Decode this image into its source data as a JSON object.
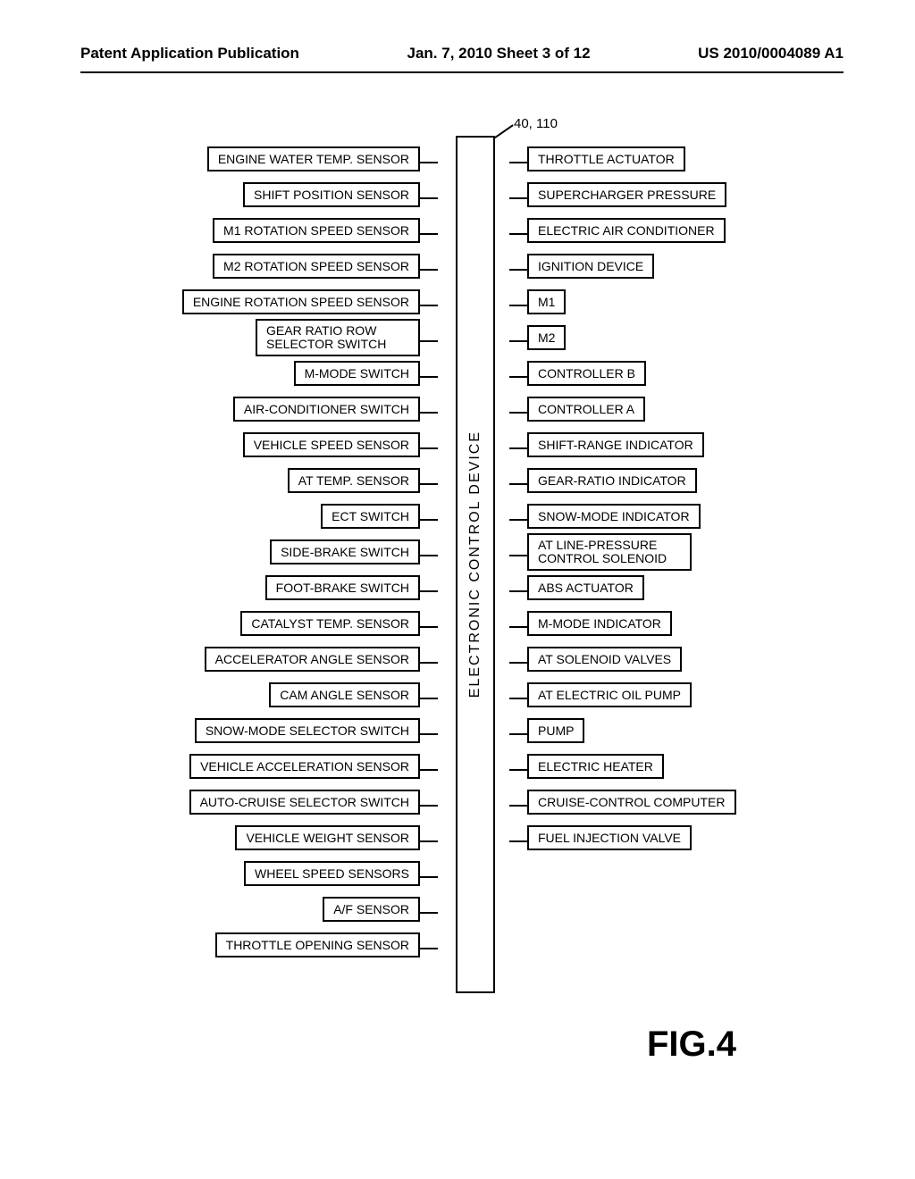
{
  "header": {
    "left": "Patent Application Publication",
    "center": "Jan. 7, 2010  Sheet 3 of 12",
    "right": "US 2010/0004089 A1"
  },
  "diagram": {
    "central_label": "ELECTRONIC CONTROL DEVICE",
    "ref_numbers": "40, 110",
    "figure_label": "FIG.4",
    "inputs": [
      {
        "label": "ENGINE WATER TEMP. SENSOR"
      },
      {
        "label": "SHIFT POSITION SENSOR"
      },
      {
        "label": "M1 ROTATION SPEED SENSOR"
      },
      {
        "label": "M2 ROTATION SPEED SENSOR"
      },
      {
        "label": "ENGINE ROTATION SPEED SENSOR"
      },
      {
        "label": "GEAR RATIO ROW SELECTOR SWITCH",
        "two_line": true
      },
      {
        "label": "M-MODE SWITCH"
      },
      {
        "label": "AIR-CONDITIONER SWITCH"
      },
      {
        "label": "VEHICLE SPEED SENSOR"
      },
      {
        "label": "AT TEMP. SENSOR"
      },
      {
        "label": "ECT SWITCH"
      },
      {
        "label": "SIDE-BRAKE SWITCH"
      },
      {
        "label": "FOOT-BRAKE SWITCH"
      },
      {
        "label": "CATALYST TEMP. SENSOR"
      },
      {
        "label": "ACCELERATOR ANGLE SENSOR"
      },
      {
        "label": "CAM  ANGLE SENSOR"
      },
      {
        "label": "SNOW-MODE SELECTOR SWITCH"
      },
      {
        "label": "VEHICLE ACCELERATION SENSOR"
      },
      {
        "label": "AUTO-CRUISE SELECTOR SWITCH"
      },
      {
        "label": "VEHICLE WEIGHT SENSOR"
      },
      {
        "label": "WHEEL SPEED SENSORS"
      },
      {
        "label": "A/F SENSOR"
      },
      {
        "label": "THROTTLE OPENING SENSOR"
      }
    ],
    "outputs": [
      {
        "label": "THROTTLE ACTUATOR"
      },
      {
        "label": "SUPERCHARGER PRESSURE"
      },
      {
        "label": "ELECTRIC AIR CONDITIONER"
      },
      {
        "label": "IGNITION DEVICE"
      },
      {
        "label": "M1"
      },
      {
        "label": "M2"
      },
      {
        "label": "CONTROLLER B"
      },
      {
        "label": "CONTROLLER A"
      },
      {
        "label": "SHIFT-RANGE INDICATOR"
      },
      {
        "label": "GEAR-RATIO INDICATOR"
      },
      {
        "label": "SNOW-MODE INDICATOR"
      },
      {
        "label": "AT LINE-PRESSURE CONTROL SOLENOID",
        "two_line": true
      },
      {
        "label": "ABS ACTUATOR"
      },
      {
        "label": "M-MODE INDICATOR"
      },
      {
        "label": "AT SOLENOID VALVES"
      },
      {
        "label": "AT ELECTRIC OIL PUMP"
      },
      {
        "label": "PUMP"
      },
      {
        "label": "ELECTRIC HEATER"
      },
      {
        "label": "CRUISE-CONTROL COMPUTER"
      },
      {
        "label": "FUEL INJECTION VALVE"
      }
    ]
  }
}
